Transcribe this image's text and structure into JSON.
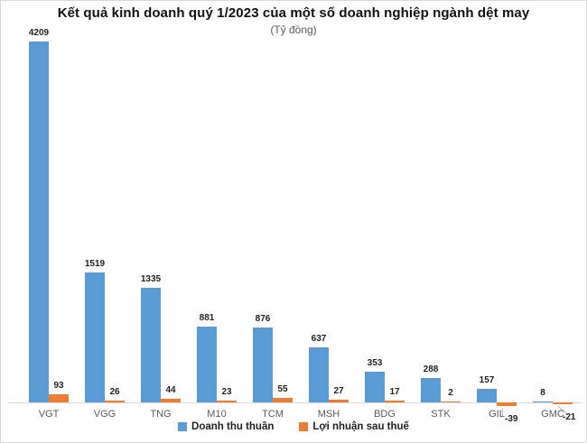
{
  "chart_data": {
    "type": "bar",
    "title": "Kết quả kinh doanh quý 1/2023 của một số doanh nghiệp ngành dệt may",
    "subtitle": "(Tỷ đồng)",
    "categories": [
      "VGT",
      "VGG",
      "TNG",
      "M10",
      "TCM",
      "MSH",
      "BDG",
      "STK",
      "GIL",
      "GMC"
    ],
    "series": [
      {
        "name": "Doanh thu thuần",
        "color": "#5B9BD5",
        "values": [
          4209,
          1519,
          1335,
          881,
          876,
          637,
          353,
          288,
          157,
          8
        ]
      },
      {
        "name": "Lợi nhuận sau thuế",
        "color": "#ED7D31",
        "values": [
          93,
          26,
          44,
          23,
          55,
          27,
          17,
          2,
          -39,
          -21
        ]
      }
    ],
    "ylim": [
      -60,
      4300
    ],
    "grid": false,
    "y_axis_visible": false,
    "legend_position": "bottom",
    "axis_color": "#D9D9D9",
    "data_labels": true,
    "negative_label_leaders": {
      "GIL": "vertical",
      "GMC": "diagonal"
    }
  }
}
